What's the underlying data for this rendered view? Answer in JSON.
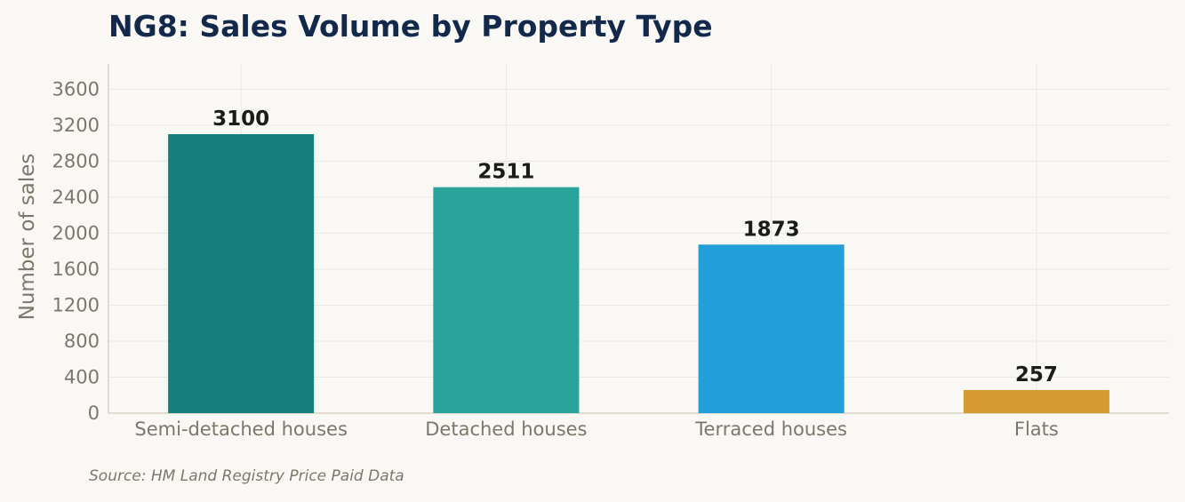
{
  "chart_data": {
    "type": "bar",
    "title": "NG8: Sales Volume by Property Type",
    "categories": [
      "Semi-detached houses",
      "Detached houses",
      "Terraced houses",
      "Flats"
    ],
    "values": [
      3100,
      2511,
      1873,
      257
    ],
    "colors": [
      "#167f7e",
      "#2aa39b",
      "#229ed9",
      "#d69a33"
    ],
    "xlabel": "",
    "ylabel": "Number of sales",
    "ylim": [
      0,
      3880
    ],
    "yticks": [
      0,
      400,
      800,
      1200,
      1600,
      2000,
      2400,
      2800,
      3200,
      3600
    ],
    "grid": true,
    "legend": false
  },
  "source": "Source: HM Land Registry Price Paid Data"
}
